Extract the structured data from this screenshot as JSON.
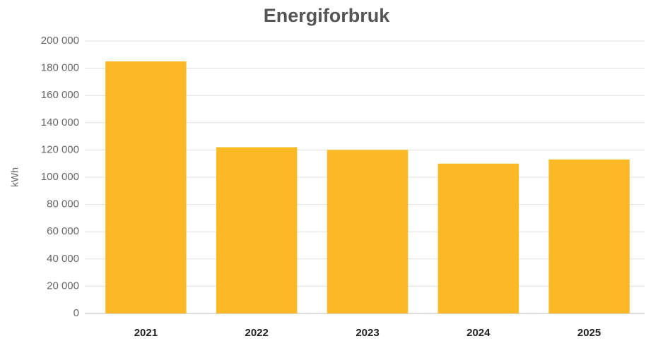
{
  "chart_data": {
    "type": "bar",
    "title": "Energiforbruk",
    "y_label": "kWh",
    "categories": [
      "2021",
      "2022",
      "2023",
      "2024",
      "2025"
    ],
    "values": [
      185000,
      122000,
      120000,
      110000,
      113000
    ],
    "color": "#fbba25",
    "ylim": [
      0,
      200000
    ],
    "yticks": [
      0,
      {
        "value": 20000,
        "label": "20 000"
      },
      {
        "value": 40000,
        "label": "40 000"
      },
      {
        "value": 60000,
        "label": "60 000"
      },
      {
        "value": 80000,
        "label": "80 000"
      },
      {
        "value": 100000,
        "label": "100 000"
      },
      {
        "value": 120000,
        "label": "120 000"
      },
      {
        "value": 140000,
        "label": "140 000"
      },
      {
        "value": 160000,
        "label": "160 000"
      },
      {
        "value": 180000,
        "label": "180 000"
      },
      {
        "value": 200000,
        "label": "200 000"
      }
    ],
    "grid": true
  }
}
